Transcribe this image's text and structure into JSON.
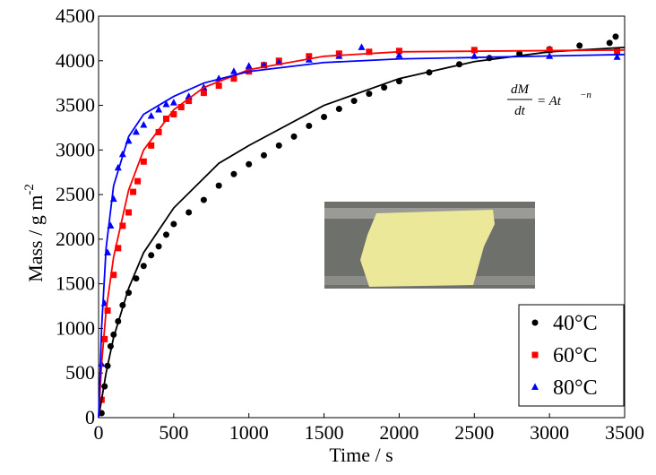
{
  "chart_data": {
    "type": "scatter",
    "x_label": "Time / s",
    "y_label": "Mass / g m",
    "y_label_sup": "-2",
    "annotation": {
      "numerator": "dM",
      "denominator": "dt",
      "rhs": "= At",
      "exponent": "−n"
    },
    "xlim": [
      0,
      3500
    ],
    "ylim": [
      0,
      4500
    ],
    "xticks": [
      0,
      500,
      1000,
      1500,
      2000,
      2500,
      3000,
      3500
    ],
    "yticks": [
      0,
      500,
      1000,
      1500,
      2000,
      2500,
      3000,
      3500,
      4000,
      4500
    ],
    "grid": false,
    "legend": "lower-right",
    "series": [
      {
        "name": "40°C",
        "color": "#000000",
        "marker": "circle",
        "x": [
          20,
          40,
          60,
          80,
          100,
          130,
          160,
          200,
          250,
          300,
          350,
          400,
          450,
          500,
          600,
          700,
          800,
          900,
          1000,
          1100,
          1200,
          1300,
          1400,
          1500,
          1600,
          1700,
          1800,
          1900,
          2000,
          2200,
          2400,
          2600,
          2800,
          3000,
          3200,
          3400,
          3440
        ],
        "values": [
          50,
          350,
          580,
          800,
          930,
          1080,
          1260,
          1400,
          1560,
          1700,
          1820,
          1920,
          2050,
          2170,
          2300,
          2440,
          2600,
          2730,
          2840,
          2940,
          3050,
          3150,
          3270,
          3370,
          3460,
          3550,
          3630,
          3700,
          3770,
          3870,
          3960,
          4030,
          4080,
          4130,
          4170,
          4200,
          4270
        ]
      },
      {
        "name": "60°C",
        "color": "#ff0000",
        "marker": "square",
        "x": [
          20,
          40,
          60,
          100,
          130,
          160,
          200,
          230,
          260,
          300,
          350,
          400,
          450,
          500,
          550,
          600,
          700,
          800,
          900,
          1000,
          1100,
          1200,
          1400,
          1600,
          1800,
          2000,
          2500,
          3000,
          3450
        ],
        "values": [
          200,
          880,
          1200,
          1600,
          1900,
          2150,
          2300,
          2530,
          2650,
          2870,
          3050,
          3200,
          3350,
          3400,
          3480,
          3550,
          3640,
          3720,
          3800,
          3880,
          3950,
          4000,
          4050,
          4080,
          4100,
          4110,
          4120,
          4120,
          4110
        ]
      },
      {
        "name": "80°C",
        "color": "#0000ff",
        "marker": "triangle",
        "x": [
          20,
          40,
          60,
          80,
          100,
          130,
          160,
          200,
          250,
          300,
          350,
          400,
          450,
          500,
          600,
          700,
          800,
          900,
          1000,
          1100,
          1200,
          1400,
          1600,
          1750,
          2000,
          2500,
          3000,
          3450
        ],
        "values": [
          600,
          1280,
          1850,
          2150,
          2450,
          2800,
          2950,
          3100,
          3200,
          3280,
          3380,
          3450,
          3510,
          3530,
          3600,
          3700,
          3800,
          3880,
          3940,
          3950,
          3980,
          4010,
          4050,
          4150,
          4060,
          4050,
          4050,
          4040
        ]
      },
      {
        "color": "#000000",
        "marker": "line",
        "x": [
          0,
          50,
          100,
          200,
          300,
          500,
          800,
          1000,
          1500,
          2000,
          2500,
          3000,
          3500
        ],
        "values": [
          0,
          500,
          900,
          1450,
          1850,
          2350,
          2850,
          3050,
          3500,
          3800,
          3990,
          4100,
          4150
        ]
      },
      {
        "color": "#ff0000",
        "marker": "line",
        "x": [
          0,
          20,
          50,
          100,
          200,
          300,
          500,
          700,
          1000,
          1500,
          2000,
          3500
        ],
        "values": [
          0,
          600,
          1200,
          1800,
          2550,
          3000,
          3450,
          3700,
          3900,
          4050,
          4100,
          4120
        ]
      },
      {
        "color": "#0000ff",
        "marker": "line",
        "x": [
          0,
          20,
          50,
          100,
          200,
          300,
          500,
          700,
          1000,
          1500,
          2000,
          3500
        ],
        "values": [
          0,
          1000,
          1900,
          2600,
          3150,
          3400,
          3600,
          3750,
          3880,
          3980,
          4020,
          4070
        ]
      }
    ]
  }
}
